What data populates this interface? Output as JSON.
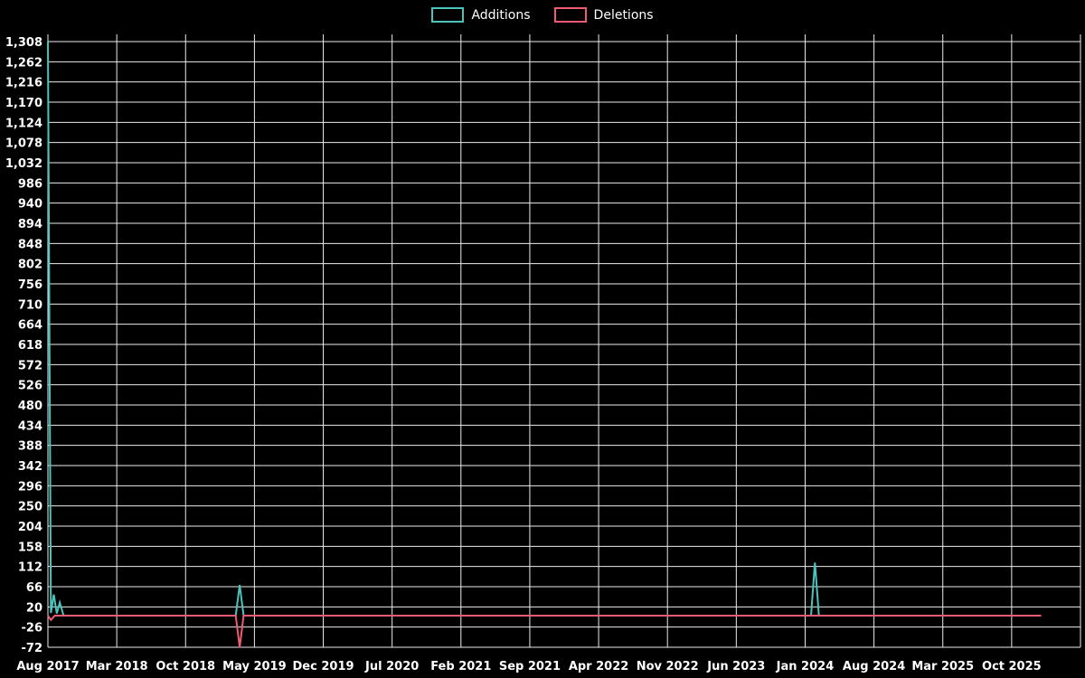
{
  "legend": {
    "additions_label": "Additions",
    "deletions_label": "Deletions"
  },
  "colors": {
    "background": "#000000",
    "grid": "#ececec",
    "text": "#ffffff",
    "additions": "#49c5be",
    "deletions": "#ef5b70"
  },
  "chart_data": {
    "type": "line",
    "title": "",
    "xlabel": "",
    "ylabel": "",
    "grid": true,
    "legend_position": "top-center",
    "x_tick_labels": [
      "Aug 2017",
      "Mar 2018",
      "Oct 2018",
      "May 2019",
      "Dec 2019",
      "Jul 2020",
      "Feb 2021",
      "Sep 2021",
      "Apr 2022",
      "Nov 2022",
      "Jun 2023",
      "Jan 2024",
      "Aug 2024",
      "Mar 2025",
      "Oct 2025"
    ],
    "x_tick_interval_months": 7,
    "x_range_months": [
      0,
      105
    ],
    "y_tick_labels": [
      "1,308",
      "1,262",
      "1,216",
      "1,170",
      "1,124",
      "1,078",
      "1,032",
      "986",
      "940",
      "894",
      "848",
      "802",
      "756",
      "710",
      "664",
      "618",
      "572",
      "526",
      "480",
      "434",
      "388",
      "342",
      "296",
      "250",
      "204",
      "158",
      "112",
      "66",
      "20",
      "-26",
      "-72"
    ],
    "y_ticks": [
      1308,
      1262,
      1216,
      1170,
      1124,
      1078,
      1032,
      986,
      940,
      894,
      848,
      802,
      756,
      710,
      664,
      618,
      572,
      526,
      480,
      434,
      388,
      342,
      296,
      250,
      204,
      158,
      112,
      66,
      20,
      -26,
      -72
    ],
    "ylim": [
      -72,
      1308
    ],
    "series": [
      {
        "name": "Additions",
        "color": "#49c5be",
        "points": [
          [
            0,
            1308
          ],
          [
            0.3,
            6
          ],
          [
            0.6,
            48
          ],
          [
            0.9,
            5
          ],
          [
            1.2,
            30
          ],
          [
            1.6,
            0
          ],
          [
            19.1,
            0
          ],
          [
            19.5,
            70
          ],
          [
            19.9,
            0
          ],
          [
            77.6,
            0
          ],
          [
            78,
            121
          ],
          [
            78.4,
            0
          ],
          [
            101,
            0
          ]
        ]
      },
      {
        "name": "Deletions",
        "color": "#ef5b70",
        "points": [
          [
            0,
            0
          ],
          [
            0.3,
            -10
          ],
          [
            0.7,
            0
          ],
          [
            19.1,
            0
          ],
          [
            19.5,
            -72
          ],
          [
            19.9,
            0
          ],
          [
            101,
            0
          ]
        ]
      }
    ]
  }
}
